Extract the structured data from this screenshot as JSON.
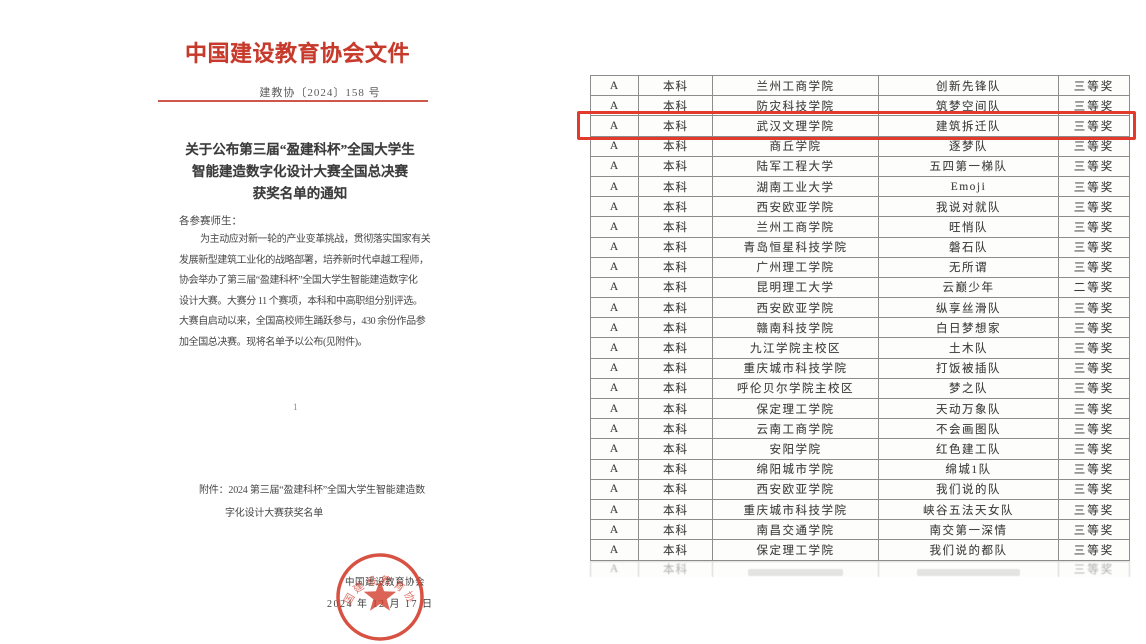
{
  "document": {
    "header_title": "中国建设教育协会文件",
    "doc_number": "建教协〔2024〕158 号",
    "notice_title_lines": [
      "关于公布第三届“盈建科杯”全国大学生",
      "智能建造数字化设计大赛全国总决赛",
      "获奖名单的通知"
    ],
    "salutation": "各参赛师生：",
    "body_lines": [
      "为主动应对新一轮的产业变革挑战，贯彻落实国家有关",
      "发展新型建筑工业化的战略部署，培养新时代卓越工程师，",
      "协会举办了第三届“盈建科杯”全国大学生智能建造数字化",
      "设计大赛。大赛分 11 个赛项，本科和中高职组分别评选。",
      "大赛自启动以来，全国高校师生踊跃参与，430 余份作品参",
      "加全国总决赛。现将名单予以公布(见附件)。"
    ],
    "page_number": "1",
    "attachment_lines": [
      "附件：2024 第三届“盈建科杯”全国大学生智能建造数",
      "字化设计大赛获奖名单"
    ],
    "seal": {
      "org_text": "中国建设教育协会",
      "date_text": "2024 年 12 月 17 日",
      "curved_text": "中国建设教育协会"
    }
  },
  "table": {
    "highlight_row_index": 2,
    "rows": [
      {
        "category": "A",
        "level": "本科",
        "school": "兰州工商学院",
        "team": "创新先锋队",
        "award": "三等奖"
      },
      {
        "category": "A",
        "level": "本科",
        "school": "防灾科技学院",
        "team": "筑梦空间队",
        "award": "三等奖"
      },
      {
        "category": "A",
        "level": "本科",
        "school": "武汉文理学院",
        "team": "建筑拆迁队",
        "award": "三等奖"
      },
      {
        "category": "A",
        "level": "本科",
        "school": "商丘学院",
        "team": "逐梦队",
        "award": "三等奖"
      },
      {
        "category": "A",
        "level": "本科",
        "school": "陆军工程大学",
        "team": "五四第一梯队",
        "award": "三等奖"
      },
      {
        "category": "A",
        "level": "本科",
        "school": "湖南工业大学",
        "team": "Emoji",
        "award": "三等奖"
      },
      {
        "category": "A",
        "level": "本科",
        "school": "西安欧亚学院",
        "team": "我说对就队",
        "award": "三等奖"
      },
      {
        "category": "A",
        "level": "本科",
        "school": "兰州工商学院",
        "team": "旺悄队",
        "award": "三等奖"
      },
      {
        "category": "A",
        "level": "本科",
        "school": "青岛恒星科技学院",
        "team": "磐石队",
        "award": "三等奖"
      },
      {
        "category": "A",
        "level": "本科",
        "school": "广州理工学院",
        "team": "无所谓",
        "award": "三等奖"
      },
      {
        "category": "A",
        "level": "本科",
        "school": "昆明理工大学",
        "team": "云巅少年",
        "award": "二等奖"
      },
      {
        "category": "A",
        "level": "本科",
        "school": "西安欧亚学院",
        "team": "纵享丝滑队",
        "award": "三等奖"
      },
      {
        "category": "A",
        "level": "本科",
        "school": "赣南科技学院",
        "team": "白日梦想家",
        "award": "三等奖"
      },
      {
        "category": "A",
        "level": "本科",
        "school": "九江学院主校区",
        "team": "土木队",
        "award": "三等奖"
      },
      {
        "category": "A",
        "level": "本科",
        "school": "重庆城市科技学院",
        "team": "打饭被插队",
        "award": "三等奖"
      },
      {
        "category": "A",
        "level": "本科",
        "school": "呼伦贝尔学院主校区",
        "team": "梦之队",
        "award": "三等奖"
      },
      {
        "category": "A",
        "level": "本科",
        "school": "保定理工学院",
        "team": "天动万象队",
        "award": "三等奖"
      },
      {
        "category": "A",
        "level": "本科",
        "school": "云南工商学院",
        "team": "不会画图队",
        "award": "三等奖"
      },
      {
        "category": "A",
        "level": "本科",
        "school": "安阳学院",
        "team": "红色建工队",
        "award": "三等奖"
      },
      {
        "category": "A",
        "level": "本科",
        "school": "绵阳城市学院",
        "team": "绵城1队",
        "award": "三等奖"
      },
      {
        "category": "A",
        "level": "本科",
        "school": "西安欧亚学院",
        "team": "我们说的队",
        "award": "三等奖"
      },
      {
        "category": "A",
        "level": "本科",
        "school": "重庆城市科技学院",
        "team": "峡谷五法天女队",
        "award": "三等奖"
      },
      {
        "category": "A",
        "level": "本科",
        "school": "南昌交通学院",
        "team": "南交第一深情",
        "award": "三等奖"
      },
      {
        "category": "A",
        "level": "本科",
        "school": "保定理工学院",
        "team": "我们说的都队",
        "award": "三等奖"
      }
    ],
    "partial_row": {
      "category": "A",
      "level": "本科",
      "school": "",
      "team": "",
      "award": "三等奖"
    }
  },
  "colors": {
    "doc_red": "#c6392b",
    "seal_red": "#d33b2a",
    "highlight_red": "#e23a2c",
    "table_border": "#8c8c8c"
  }
}
